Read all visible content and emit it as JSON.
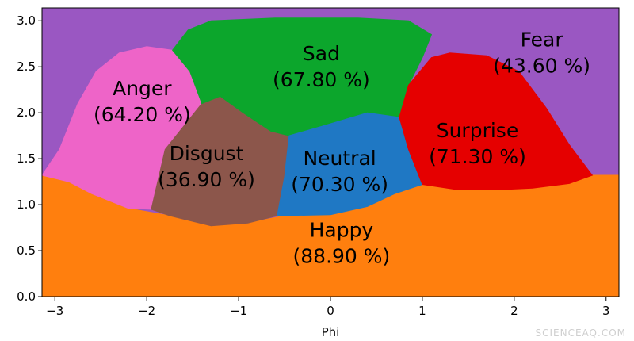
{
  "chart_data": {
    "type": "area",
    "xlabel": "Phi",
    "ylabel": "",
    "xlim": [
      -3.14,
      3.14
    ],
    "ylim": [
      0,
      3.14
    ],
    "xticks": [
      -3,
      -2,
      -1,
      0,
      1,
      2,
      3
    ],
    "xtick_labels": [
      "−3",
      "−2",
      "−1",
      "0",
      "1",
      "2",
      "3"
    ],
    "yticks": [
      0.0,
      0.5,
      1.0,
      1.5,
      2.0,
      2.5,
      3.0
    ],
    "ytick_labels": [
      "0.0",
      "0.5",
      "1.0",
      "1.5",
      "2.0",
      "2.5",
      "3.0"
    ],
    "grid": false,
    "regions": [
      {
        "name": "Fear",
        "accuracy": "(43.60 %)",
        "color": "#9a57c2",
        "label_at": [
          2.3,
          2.67
        ],
        "polygon": [
          [
            -3.14,
            0
          ],
          [
            3.14,
            0
          ],
          [
            3.14,
            3.14
          ],
          [
            -3.14,
            3.14
          ]
        ]
      },
      {
        "name": "Happy",
        "accuracy": "(88.90 %)",
        "color": "#ff7f0e",
        "label_at": [
          0.12,
          0.6
        ],
        "polygon": [
          [
            -3.14,
            0
          ],
          [
            3.14,
            0
          ],
          [
            3.14,
            1.32
          ],
          [
            2.85,
            1.32
          ],
          [
            2.6,
            1.23
          ],
          [
            2.2,
            1.18
          ],
          [
            1.8,
            1.16
          ],
          [
            1.4,
            1.16
          ],
          [
            1.0,
            1.22
          ],
          [
            0.7,
            1.12
          ],
          [
            0.4,
            0.98
          ],
          [
            0.0,
            0.89
          ],
          [
            -0.5,
            0.88
          ],
          [
            -0.9,
            0.8
          ],
          [
            -1.3,
            0.77
          ],
          [
            -1.75,
            0.88
          ],
          [
            -2.2,
            0.96
          ],
          [
            -2.6,
            1.12
          ],
          [
            -2.85,
            1.25
          ],
          [
            -3.14,
            1.32
          ]
        ]
      },
      {
        "name": "Anger",
        "accuracy": "(64.20 %)",
        "color": "#ee64c8",
        "label_at": [
          -2.05,
          2.14
        ],
        "polygon": [
          [
            -3.14,
            1.32
          ],
          [
            -2.95,
            1.6
          ],
          [
            -2.75,
            2.1
          ],
          [
            -2.55,
            2.45
          ],
          [
            -2.3,
            2.65
          ],
          [
            -2.0,
            2.72
          ],
          [
            -1.72,
            2.68
          ],
          [
            -1.53,
            2.45
          ],
          [
            -1.4,
            2.1
          ],
          [
            -1.8,
            1.6
          ],
          [
            -1.95,
            0.95
          ],
          [
            -2.2,
            0.96
          ],
          [
            -2.6,
            1.12
          ],
          [
            -2.85,
            1.25
          ]
        ]
      },
      {
        "name": "Disgust",
        "accuracy": "(36.90 %)",
        "color": "#8c564b",
        "label_at": [
          -1.35,
          1.43
        ],
        "polygon": [
          [
            -1.4,
            2.1
          ],
          [
            -1.2,
            2.18
          ],
          [
            -0.95,
            2.0
          ],
          [
            -0.65,
            1.8
          ],
          [
            -0.45,
            1.75
          ],
          [
            -0.5,
            1.3
          ],
          [
            -0.58,
            0.88
          ],
          [
            -0.9,
            0.8
          ],
          [
            -1.3,
            0.77
          ],
          [
            -1.75,
            0.88
          ],
          [
            -1.95,
            0.95
          ],
          [
            -1.8,
            1.6
          ]
        ]
      },
      {
        "name": "Sad",
        "accuracy": "(67.80 %)",
        "color": "#0ca62c",
        "label_at": [
          -0.1,
          2.52
        ],
        "polygon": [
          [
            -1.72,
            2.68
          ],
          [
            -1.55,
            2.9
          ],
          [
            -1.3,
            3.0
          ],
          [
            -0.6,
            3.03
          ],
          [
            0.3,
            3.03
          ],
          [
            0.85,
            3.0
          ],
          [
            1.1,
            2.85
          ],
          [
            1.0,
            2.6
          ],
          [
            0.85,
            2.3
          ],
          [
            0.75,
            1.95
          ],
          [
            0.4,
            2.0
          ],
          [
            -0.1,
            1.85
          ],
          [
            -0.45,
            1.75
          ],
          [
            -0.65,
            1.8
          ],
          [
            -0.95,
            2.0
          ],
          [
            -1.2,
            2.18
          ],
          [
            -1.4,
            2.1
          ],
          [
            -1.53,
            2.45
          ]
        ]
      },
      {
        "name": "Neutral",
        "accuracy": "(70.30 %)",
        "color": "#1f78c4",
        "label_at": [
          0.1,
          1.38
        ],
        "polygon": [
          [
            -0.45,
            1.75
          ],
          [
            -0.1,
            1.85
          ],
          [
            0.4,
            2.0
          ],
          [
            0.75,
            1.95
          ],
          [
            0.85,
            1.6
          ],
          [
            1.0,
            1.22
          ],
          [
            0.7,
            1.12
          ],
          [
            0.4,
            0.98
          ],
          [
            0.0,
            0.89
          ],
          [
            -0.58,
            0.88
          ],
          [
            -0.5,
            1.3
          ]
        ]
      },
      {
        "name": "Surprise",
        "accuracy": "(71.30 %)",
        "color": "#e50000",
        "label_at": [
          1.6,
          1.68
        ],
        "polygon": [
          [
            1.1,
            2.6
          ],
          [
            1.3,
            2.65
          ],
          [
            1.7,
            2.62
          ],
          [
            2.05,
            2.45
          ],
          [
            2.35,
            2.05
          ],
          [
            2.6,
            1.65
          ],
          [
            2.85,
            1.32
          ],
          [
            2.6,
            1.23
          ],
          [
            2.2,
            1.18
          ],
          [
            1.8,
            1.16
          ],
          [
            1.4,
            1.16
          ],
          [
            1.0,
            1.22
          ],
          [
            0.85,
            1.6
          ],
          [
            0.75,
            1.95
          ],
          [
            0.85,
            2.3
          ]
        ]
      }
    ],
    "watermark": "SCIENCEAQ.COM"
  }
}
